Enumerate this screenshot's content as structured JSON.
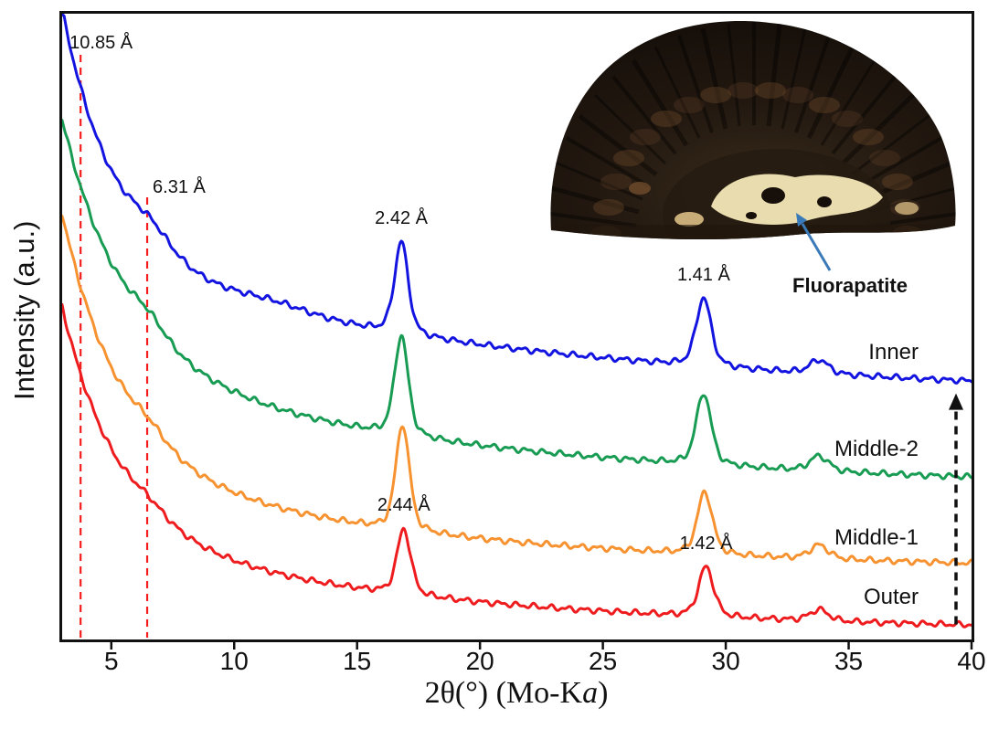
{
  "labels": {
    "ylabel": "Intensity (a.u.)",
    "xlabel_prefix": "2θ(°) (Mo-K",
    "xlabel_italic": "a",
    "xlabel_suffix": ")"
  },
  "inset": {
    "label": "Fluorapatite",
    "colors": {
      "body_dark": "#17100a",
      "body_mid": "#3a2c1c",
      "band_brown": "#7a5230",
      "patch_cream": "#e9dcae",
      "patch_tan": "#c9ad79",
      "arrow_blue": "#3a7ab8"
    }
  },
  "chart_data": {
    "type": "line",
    "title": "",
    "xlabel": "2θ(°) (Mo-Ka)",
    "ylabel": "Intensity (a.u.)",
    "xlim": [
      3,
      40
    ],
    "grid": false,
    "x_ticks": [
      5,
      10,
      15,
      20,
      25,
      30,
      35,
      40
    ],
    "axis_color": "#111111",
    "reference_lines": [
      {
        "x": 3.75,
        "label": "10.85 Å",
        "d_spacing_angstrom": 10.85,
        "color": "#f51d1d",
        "style": "dashed"
      },
      {
        "x": 6.46,
        "label": "6.31 Å",
        "d_spacing_angstrom": 6.31,
        "color": "#f51d1d",
        "style": "dashed"
      }
    ],
    "peak_annotations": [
      {
        "series": "Inner",
        "x": 16.8,
        "label": "2.42 Å",
        "d_spacing_angstrom": 2.42
      },
      {
        "series": "Inner",
        "x": 29.1,
        "label": "1.41 Å",
        "d_spacing_angstrom": 1.41
      },
      {
        "series": "Outer",
        "x": 16.9,
        "label": "2.44 Å",
        "d_spacing_angstrom": 2.44
      },
      {
        "series": "Outer",
        "x": 29.2,
        "label": "1.42 Å",
        "d_spacing_angstrom": 1.42
      }
    ],
    "direction_arrow": {
      "x": 40,
      "from_series": "Outer",
      "to_series": "Inner",
      "color": "#111111",
      "style": "dashed"
    },
    "series": [
      {
        "name": "Outer",
        "color": "#ee1c1e",
        "offset": 0.012,
        "seed": 0.7,
        "bg": [
          {
            "a": 0.36,
            "tau": 2.3
          },
          {
            "a": 0.16,
            "tau": 14
          }
        ],
        "peaks": [
          {
            "c": 6.5,
            "h": 0.015,
            "w": 0.9
          },
          {
            "c": 16.9,
            "h": 0.105,
            "w": 0.33
          },
          {
            "c": 29.2,
            "h": 0.08,
            "w": 0.36
          },
          {
            "c": 33.8,
            "h": 0.018,
            "w": 0.45
          }
        ]
      },
      {
        "name": "Middle-1",
        "color": "#f79231",
        "offset": 0.11,
        "seed": 2.1,
        "bg": [
          {
            "a": 0.4,
            "tau": 2.4
          },
          {
            "a": 0.17,
            "tau": 14
          }
        ],
        "peaks": [
          {
            "c": 6.5,
            "h": 0.02,
            "w": 0.9
          },
          {
            "c": 16.85,
            "h": 0.17,
            "w": 0.33
          },
          {
            "c": 29.15,
            "h": 0.1,
            "w": 0.36
          },
          {
            "c": 33.8,
            "h": 0.022,
            "w": 0.45
          }
        ]
      },
      {
        "name": "Middle-2",
        "color": "#189b52",
        "offset": 0.24,
        "seed": 3.4,
        "bg": [
          {
            "a": 0.39,
            "tau": 2.6
          },
          {
            "a": 0.2,
            "tau": 16
          }
        ],
        "peaks": [
          {
            "c": 6.5,
            "h": 0.025,
            "w": 0.9
          },
          {
            "c": 16.8,
            "h": 0.16,
            "w": 0.33
          },
          {
            "c": 29.1,
            "h": 0.115,
            "w": 0.36
          },
          {
            "c": 33.8,
            "h": 0.024,
            "w": 0.45
          }
        ]
      },
      {
        "name": "Inner",
        "color": "#1414e0",
        "offset": 0.385,
        "seed": 4.8,
        "bg": [
          {
            "a": 0.4,
            "tau": 2.2
          },
          {
            "a": 0.22,
            "tau": 18
          }
        ],
        "peaks": [
          {
            "c": 6.6,
            "h": 0.03,
            "w": 1.0
          },
          {
            "c": 11.6,
            "h": 0.012,
            "w": 1.8
          },
          {
            "c": 16.8,
            "h": 0.148,
            "w": 0.33
          },
          {
            "c": 29.1,
            "h": 0.11,
            "w": 0.36
          },
          {
            "c": 33.8,
            "h": 0.022,
            "w": 0.45
          }
        ]
      }
    ]
  }
}
